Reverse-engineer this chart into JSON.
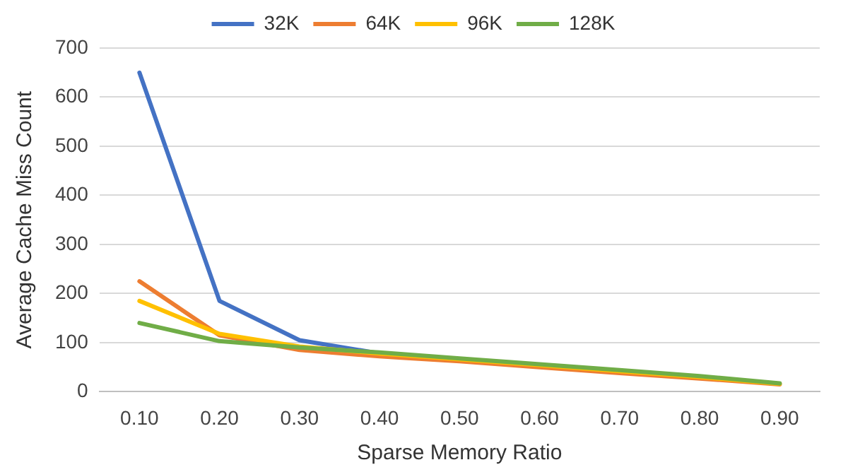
{
  "chart_data": {
    "type": "line",
    "xlabel": "Sparse Memory Ratio",
    "ylabel": "Average Cache Miss Count",
    "categories": [
      "0.10",
      "0.20",
      "0.30",
      "0.40",
      "0.50",
      "0.60",
      "0.70",
      "0.80",
      "0.90"
    ],
    "series": [
      {
        "name": "32K",
        "color": "#4472c4",
        "values": [
          650,
          185,
          105,
          78,
          null,
          null,
          null,
          null,
          null
        ]
      },
      {
        "name": "64K",
        "color": "#ed7d31",
        "values": [
          225,
          115,
          85,
          72,
          62,
          50,
          38,
          27,
          15
        ]
      },
      {
        "name": "96K",
        "color": "#ffc000",
        "values": [
          185,
          118,
          92,
          78,
          66,
          54,
          42,
          30,
          16
        ]
      },
      {
        "name": "128K",
        "color": "#70ad47",
        "values": [
          140,
          103,
          90,
          80,
          68,
          56,
          44,
          32,
          17
        ]
      }
    ],
    "ylim": [
      0,
      700
    ],
    "yticks": [
      0,
      100,
      200,
      300,
      400,
      500,
      600,
      700
    ],
    "grid": "y",
    "legend": "top",
    "marker": "none",
    "line_style": "solid"
  }
}
